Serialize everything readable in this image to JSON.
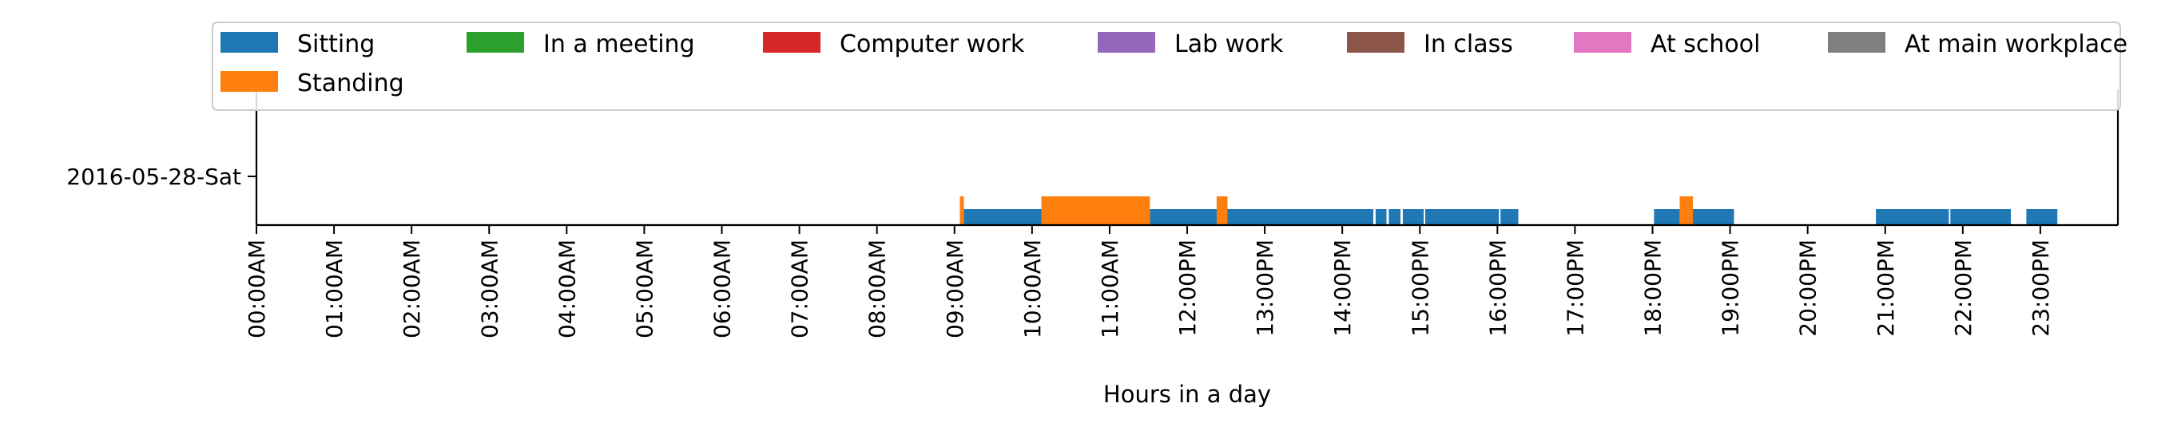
{
  "chart_data": {
    "type": "timeline",
    "title": "",
    "xlabel": "Hours in a day",
    "ylabel": "",
    "xlim": [
      0,
      24
    ],
    "y_categories": [
      "2016-05-28-Sat"
    ],
    "x_tick_labels": [
      "00:00AM",
      "01:00AM",
      "02:00AM",
      "03:00AM",
      "04:00AM",
      "05:00AM",
      "06:00AM",
      "07:00AM",
      "08:00AM",
      "09:00AM",
      "10:00AM",
      "11:00AM",
      "12:00PM",
      "13:00PM",
      "14:00PM",
      "15:00PM",
      "16:00PM",
      "17:00PM",
      "18:00PM",
      "19:00PM",
      "20:00PM",
      "21:00PM",
      "22:00PM",
      "23:00PM"
    ],
    "legend": {
      "position": "top",
      "entries": [
        {
          "name": "Sitting",
          "color": "#1f77b4"
        },
        {
          "name": "In a meeting",
          "color": "#2ca02c"
        },
        {
          "name": "Computer work",
          "color": "#d62728"
        },
        {
          "name": "Lab work",
          "color": "#9467bd"
        },
        {
          "name": "In class",
          "color": "#8c564b"
        },
        {
          "name": "At school",
          "color": "#e377c2"
        },
        {
          "name": "At main workplace",
          "color": "#7f7f7f"
        },
        {
          "name": "Standing",
          "color": "#ff7f0e"
        }
      ]
    },
    "series": [
      {
        "name": "Sitting",
        "color": "#1f77b4",
        "intervals": [
          [
            9.12,
            10.12
          ],
          [
            11.52,
            12.42
          ],
          [
            12.52,
            14.4
          ],
          [
            14.43,
            14.57
          ],
          [
            14.6,
            14.75
          ],
          [
            14.78,
            15.05
          ],
          [
            15.07,
            16.02
          ],
          [
            16.04,
            16.27
          ],
          [
            18.02,
            18.35
          ],
          [
            18.52,
            19.05
          ],
          [
            20.88,
            21.82
          ],
          [
            21.84,
            22.62
          ],
          [
            22.82,
            23.22
          ]
        ]
      },
      {
        "name": "Standing",
        "color": "#ff7f0e",
        "intervals": [
          [
            9.07,
            9.12
          ],
          [
            10.12,
            11.52
          ],
          [
            12.38,
            12.52
          ],
          [
            18.35,
            18.52
          ]
        ]
      }
    ]
  }
}
